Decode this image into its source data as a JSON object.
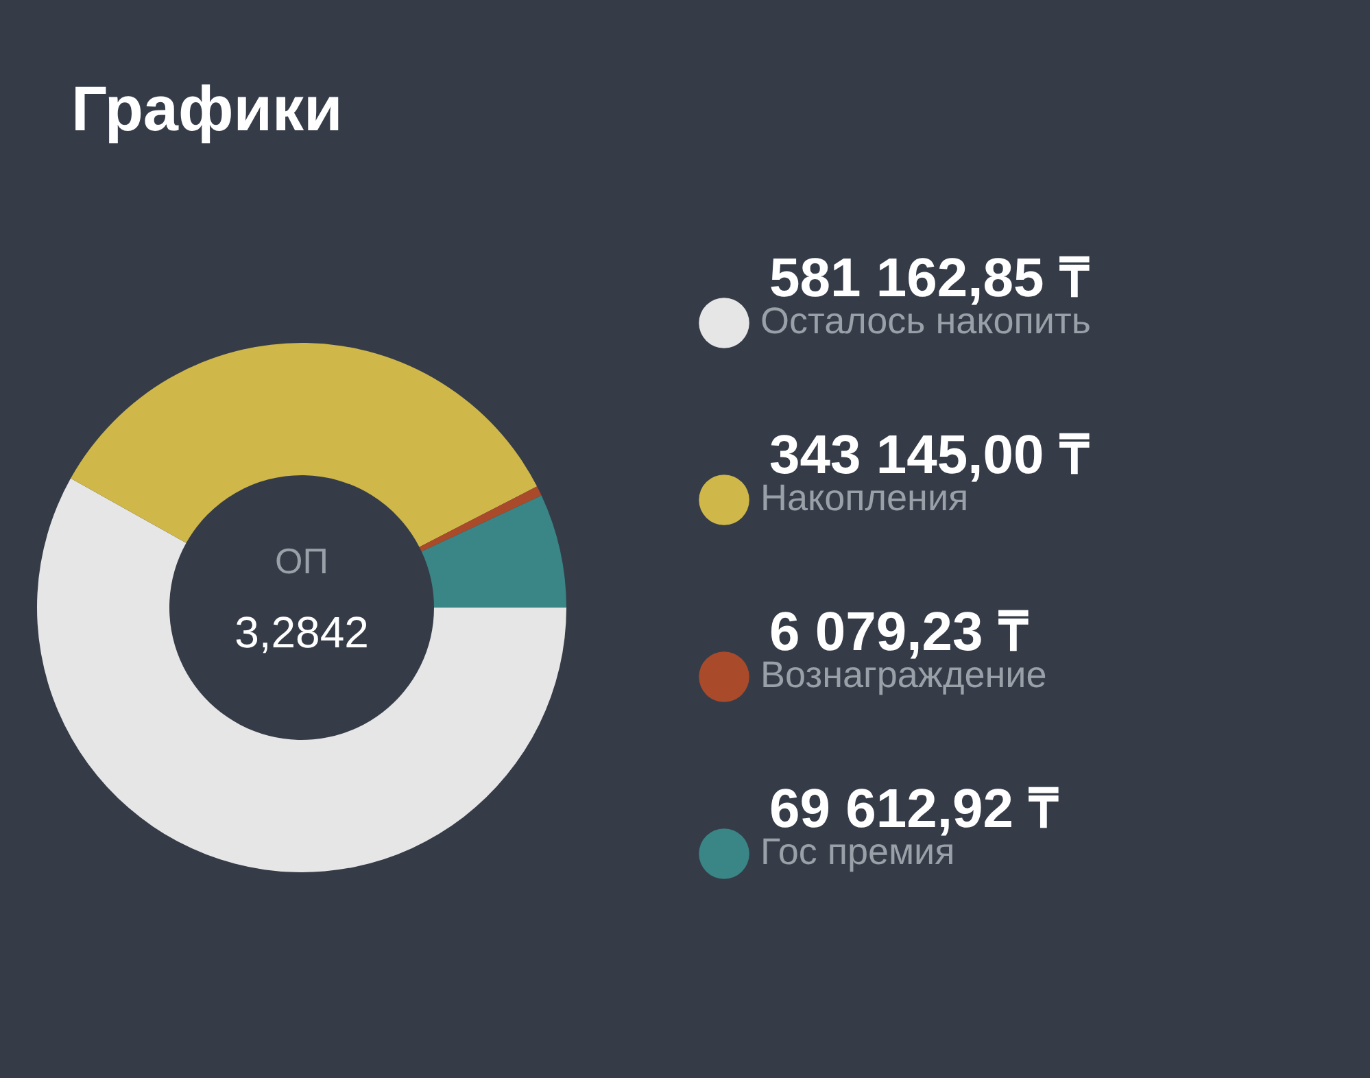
{
  "chart_data": {
    "type": "donut",
    "title": "Графики",
    "categories": [
      "Осталось накопить",
      "Накопления",
      "Вознаграждение",
      "Гос премия"
    ],
    "values": [
      581162.85,
      343145.0,
      6079.23,
      69612.92
    ],
    "value_labels": [
      "581 162,85 ₸",
      "343 145,00 ₸",
      "6 079,23 ₸",
      "69 612,92 ₸"
    ],
    "colors": [
      "#e6e6e6",
      "#cfb74a",
      "#a94a2b",
      "#3a8585"
    ],
    "annotations": [
      "ОП",
      "3,2842"
    ],
    "legend": "right"
  }
}
